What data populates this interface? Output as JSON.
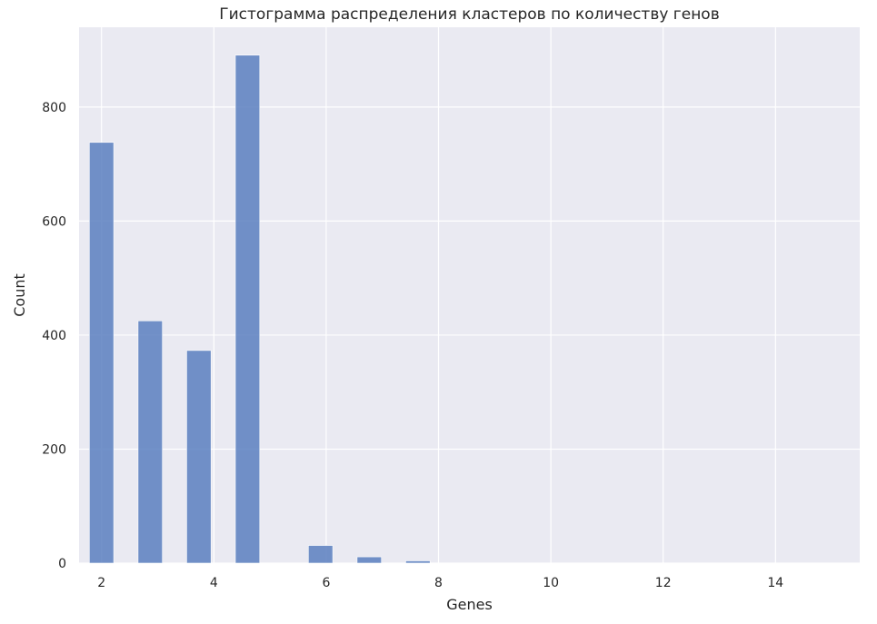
{
  "chart_data": {
    "type": "bar",
    "title": "Гистограмма распределения кластеров по количеству генов",
    "xlabel": "Genes",
    "ylabel": "Count",
    "xlim": [
      1.6,
      15.5
    ],
    "ylim": [
      0,
      940
    ],
    "xticks": [
      2,
      4,
      6,
      8,
      10,
      12,
      14
    ],
    "yticks": [
      0,
      200,
      400,
      600,
      800
    ],
    "grid": true,
    "bin_width": 0.433,
    "bins": [
      {
        "x": 2.0,
        "value": 738
      },
      {
        "x": 2.867,
        "value": 425
      },
      {
        "x": 3.733,
        "value": 373
      },
      {
        "x": 4.6,
        "value": 891
      },
      {
        "x": 5.9,
        "value": 31
      },
      {
        "x": 6.767,
        "value": 11
      },
      {
        "x": 7.633,
        "value": 4
      },
      {
        "x": 8.5,
        "value": 0
      },
      {
        "x": 9.367,
        "value": 0
      },
      {
        "x": 10.233,
        "value": 0
      },
      {
        "x": 11.1,
        "value": 0
      },
      {
        "x": 11.967,
        "value": 0
      },
      {
        "x": 12.833,
        "value": 0
      },
      {
        "x": 13.7,
        "value": 0
      },
      {
        "x": 14.567,
        "value": 0
      }
    ],
    "colors": {
      "bar": "#5a7fbf",
      "plot_background": "#eaeaf2",
      "grid": "#ffffff"
    }
  }
}
